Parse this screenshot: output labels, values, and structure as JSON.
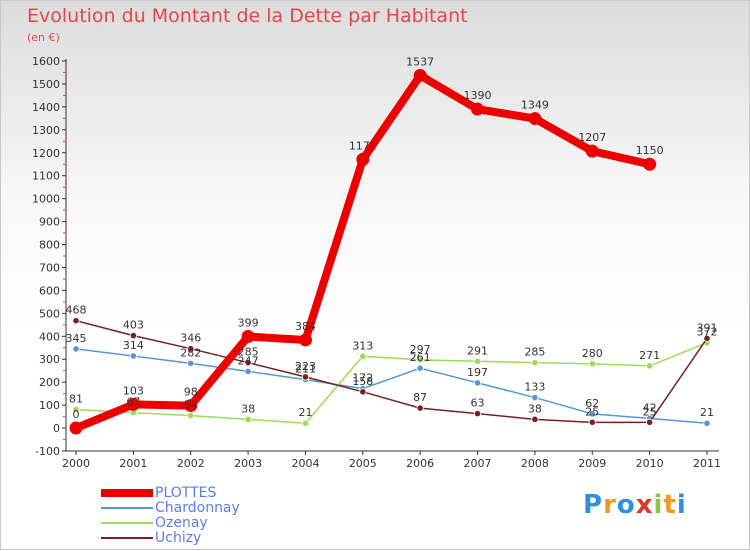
{
  "title": "Evolution du Montant de la Dette par Habitant",
  "subtitle": "(en €)",
  "logo": {
    "text": "Proxiti",
    "letters": [
      "P",
      "r",
      "o",
      "x",
      "i",
      "t",
      "i"
    ],
    "colors": [
      "#2f8fd8",
      "#f29a1f",
      "#2f8fd8",
      "#e0362c",
      "#8cc63f",
      "#f29a1f",
      "#2f8fd8"
    ]
  },
  "chart_data": {
    "type": "line",
    "title": "Evolution du Montant de la Dette par Habitant",
    "subtitle": "(en €)",
    "xlabel": "",
    "ylabel": "",
    "categories": [
      "2000",
      "2001",
      "2002",
      "2003",
      "2004",
      "2005",
      "2006",
      "2007",
      "2008",
      "2009",
      "2010",
      "2011"
    ],
    "ylim": [
      -100,
      1600
    ],
    "yticks": [
      -100,
      0,
      100,
      200,
      300,
      400,
      500,
      600,
      700,
      800,
      900,
      1000,
      1100,
      1200,
      1300,
      1400,
      1500,
      1600
    ],
    "grid": false,
    "legend_position": "bottom-left",
    "series": [
      {
        "name": "PLOTTES",
        "color": "#ee0000",
        "values": [
          0,
          103,
          98,
          399,
          384,
          1171,
          1537,
          1390,
          1349,
          1207,
          1150,
          null
        ],
        "labels": [
          "0",
          "103",
          "98",
          "399",
          "384",
          "1171",
          "1537",
          "1390",
          "1349",
          "1207",
          "1150",
          ""
        ]
      },
      {
        "name": "Chardonnay",
        "color": "#5596d6",
        "values": [
          345,
          314,
          282,
          247,
          211,
          172,
          261,
          197,
          133,
          62,
          42,
          21
        ],
        "labels": [
          "345",
          "314",
          "282",
          "247",
          "211",
          "172",
          "261",
          "197",
          "133",
          "62",
          "42",
          "21"
        ]
      },
      {
        "name": "Ozenay",
        "color": "#99dd55",
        "values": [
          81,
          67,
          54,
          38,
          21,
          313,
          297,
          291,
          285,
          280,
          271,
          372
        ],
        "labels": [
          "81",
          "67",
          "54",
          "38",
          "21",
          "313",
          "297",
          "291",
          "285",
          "280",
          "271",
          "372"
        ]
      },
      {
        "name": "Uchizy",
        "color": "#7a1f1f",
        "values": [
          468,
          403,
          346,
          285,
          223,
          158,
          87,
          63,
          38,
          25,
          25,
          391
        ],
        "labels": [
          "468",
          "403",
          "346",
          "285",
          "223",
          "158",
          "87",
          "63",
          "38",
          "25",
          "25",
          "391"
        ]
      }
    ]
  }
}
